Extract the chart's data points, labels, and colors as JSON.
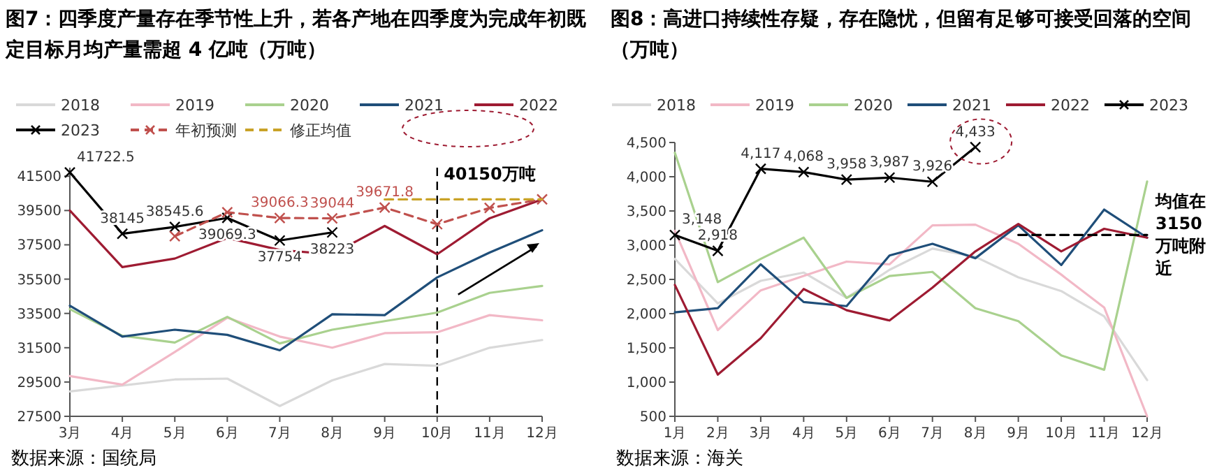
{
  "chart_data": [
    {
      "type": "line",
      "title": "图7：四季度产量存在季节性上升，若各产地在四季度为完成年初既定目标月均产量需超 4 亿吨（万吨）",
      "categories": [
        "3月",
        "4月",
        "5月",
        "6月",
        "7月",
        "8月",
        "9月",
        "10月",
        "11月",
        "12月"
      ],
      "series": [
        {
          "name": "2018",
          "color": "#d9d9d9",
          "values": [
            28950,
            29300,
            29650,
            29700,
            28100,
            29600,
            30550,
            30450,
            31500,
            31950
          ]
        },
        {
          "name": "2019",
          "color": "#f2b8c6",
          "values": [
            29850,
            29350,
            31250,
            33250,
            32150,
            31500,
            32350,
            32400,
            33400,
            33100
          ]
        },
        {
          "name": "2020",
          "color": "#a9d18e",
          "values": [
            33750,
            32200,
            31800,
            33300,
            31750,
            32550,
            33050,
            33550,
            34700,
            35100
          ]
        },
        {
          "name": "2021",
          "color": "#1f4e79",
          "values": [
            33950,
            32150,
            32550,
            32250,
            31350,
            33450,
            33400,
            35600,
            37050,
            38350
          ]
        },
        {
          "name": "2022",
          "color": "#9e1b32",
          "values": [
            39500,
            36200,
            36700,
            37900,
            37200,
            36950,
            38600,
            36950,
            39050,
            40150
          ]
        },
        {
          "name": "2023",
          "color": "#000000",
          "marker": "cross",
          "values": [
            41722.5,
            38145,
            38545.6,
            39069.3,
            37754,
            38223,
            null,
            null,
            null,
            null
          ],
          "value_labels": [
            "41722.5",
            "38145",
            "38545.6",
            "39069.3",
            "37754",
            "38223",
            null,
            null,
            null,
            null
          ]
        },
        {
          "name": "年初预测",
          "color": "#c0504d",
          "marker": "cross",
          "line_style": "dashed",
          "values": [
            null,
            null,
            38000,
            39400,
            39066.3,
            39044,
            39671.8,
            38700,
            39650,
            40150
          ],
          "value_labels": [
            null,
            null,
            null,
            null,
            "39066.3",
            "39044",
            "39671.8",
            null,
            null,
            null
          ]
        },
        {
          "name": "修正均值",
          "color": "#c9a227",
          "line_style": "dashed",
          "values": [
            null,
            null,
            null,
            null,
            null,
            null,
            40150,
            40150,
            40150,
            40150
          ]
        }
      ],
      "ylim": [
        27500,
        42000
      ],
      "yticks": [
        27500,
        29500,
        31500,
        33500,
        35500,
        37500,
        39500,
        41500
      ],
      "ref_lines": [
        {
          "axis": "x",
          "value": "10月",
          "color": "#000000",
          "line_style": "dashed"
        }
      ],
      "annotations": [
        {
          "text": "40150万吨",
          "x": "11月",
          "y": 40150
        },
        "数据来源：国统局"
      ],
      "legend": "top"
    },
    {
      "type": "line",
      "title": "图8：高进口持续性存疑，存在隐忧，但留有足够可接受回落的空间（万吨）",
      "categories": [
        "1月",
        "2月",
        "3月",
        "4月",
        "5月",
        "6月",
        "7月",
        "8月",
        "9月",
        "10月",
        "11月",
        "12月"
      ],
      "series": [
        {
          "name": "2018",
          "color": "#d9d9d9",
          "values": [
            2800,
            2150,
            2480,
            2600,
            2230,
            2640,
            2950,
            2830,
            2530,
            2330,
            1960,
            1030
          ]
        },
        {
          "name": "2019",
          "color": "#f2b8c6",
          "values": [
            3210,
            1760,
            2340,
            2550,
            2760,
            2720,
            3290,
            3300,
            3020,
            2570,
            2090,
            500
          ]
        },
        {
          "name": "2020",
          "color": "#a9d18e",
          "values": [
            4350,
            2460,
            2800,
            3110,
            2230,
            2550,
            2610,
            2080,
            1890,
            1390,
            1180,
            3930
          ]
        },
        {
          "name": "2021",
          "color": "#1f4e79",
          "values": [
            2020,
            2080,
            2720,
            2170,
            2110,
            2850,
            3020,
            2810,
            3290,
            2710,
            3520,
            3110
          ]
        },
        {
          "name": "2022",
          "color": "#9e1b32",
          "values": [
            2420,
            1110,
            1640,
            2360,
            2050,
            1900,
            2380,
            2910,
            3310,
            2910,
            3240,
            3110
          ]
        },
        {
          "name": "2023",
          "color": "#000000",
          "marker": "cross",
          "values": [
            3148,
            2918,
            4117,
            4068,
            3958,
            3987,
            3926,
            4433,
            null,
            null,
            null,
            null
          ],
          "value_labels": [
            "3,148",
            "2,918",
            "4,117",
            "4,068",
            "3,958",
            "3,987",
            "3,926",
            "4,433",
            null,
            null,
            null,
            null
          ]
        },
        {
          "color": "#000000",
          "line_style": "dashed",
          "values": [
            null,
            null,
            null,
            null,
            null,
            null,
            null,
            null,
            3150,
            3150,
            3150,
            3150
          ]
        }
      ],
      "ylim": [
        500,
        4500
      ],
      "yticks": [
        {
          "value": 500,
          "label": "500"
        },
        {
          "value": 1000,
          "label": "1,000"
        },
        {
          "value": 1500,
          "label": "1,500"
        },
        {
          "value": 2000,
          "label": "2,000"
        },
        {
          "value": 2500,
          "label": "2,500"
        },
        {
          "value": 3000,
          "label": "3,000"
        },
        {
          "value": 3500,
          "label": "3,500"
        },
        {
          "value": 4000,
          "label": "4,000"
        },
        {
          "value": 4500,
          "label": "4,500"
        }
      ],
      "annotations": [
        {
          "text": "均值在3150万吨附近",
          "x": "12月",
          "y": 3150
        },
        "数据来源：海关"
      ],
      "legend": "top"
    }
  ]
}
